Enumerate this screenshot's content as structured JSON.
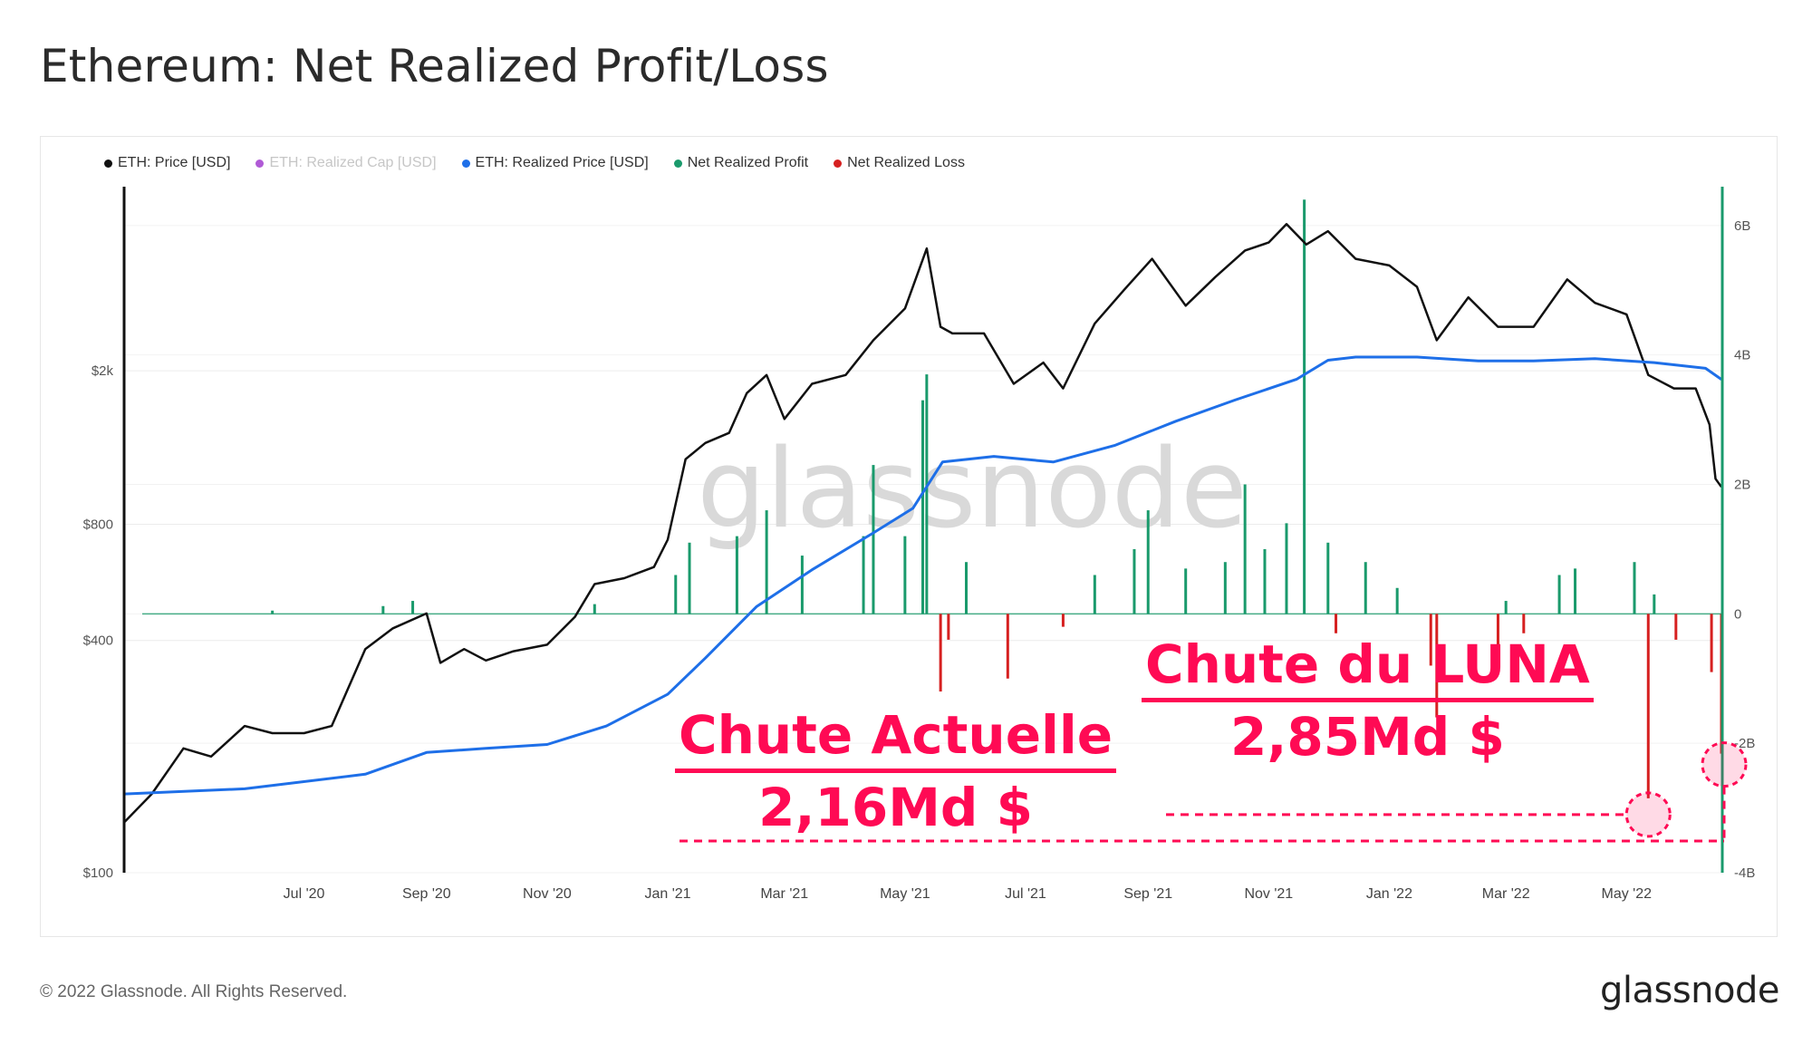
{
  "title": "Ethereum: Net Realized Profit/Loss",
  "footer": "© 2022 Glassnode. All Rights Reserved.",
  "brand": "glassnode",
  "watermark": "glassnode",
  "legend": [
    {
      "label": "ETH: Price [USD]",
      "color": "#111111",
      "enabled": true
    },
    {
      "label": "ETH: Realized Cap [USD]",
      "color": "#b05ad6",
      "enabled": false
    },
    {
      "label": "ETH: Realized Price [USD]",
      "color": "#1e6fe8",
      "enabled": true
    },
    {
      "label": "Net Realized Profit",
      "color": "#1a9a6c",
      "enabled": true
    },
    {
      "label": "Net Realized Loss",
      "color": "#d62020",
      "enabled": true
    }
  ],
  "annotations": {
    "current": {
      "head": "Chute Actuelle",
      "value": "2,16Md $"
    },
    "luna": {
      "head": "Chute du LUNA",
      "value": "2,85Md $"
    }
  },
  "colors": {
    "accent": "#ff0a54",
    "price": "#111111",
    "realized": "#1e6fe8",
    "profit": "#1a9a6c",
    "loss": "#d62020"
  },
  "chart_data": {
    "type": "line",
    "x_ticks": [
      "Jul '20",
      "Sep '20",
      "Nov '20",
      "Jan '21",
      "Mar '21",
      "May '21",
      "Jul '21",
      "Sep '21",
      "Nov '21",
      "Jan '22",
      "Mar '22",
      "May '22"
    ],
    "y_left_ticks": [
      "$100",
      "$400",
      "$800",
      "$2k"
    ],
    "y_left_scale": "log",
    "y_left_range": [
      100,
      6000
    ],
    "y_right_ticks": [
      "6B",
      "4B",
      "2B",
      "0",
      "-2B",
      "-4B"
    ],
    "y_right_range": [
      -4,
      6.6
    ],
    "grid": true,
    "legend_position": "top-left",
    "x_range": [
      "2020-04-01",
      "2022-06-18"
    ],
    "series": [
      {
        "name": "ETH: Price [USD]",
        "axis": "left",
        "points": [
          [
            "2020-04-01",
            135
          ],
          [
            "2020-04-15",
            160
          ],
          [
            "2020-05-01",
            210
          ],
          [
            "2020-05-15",
            200
          ],
          [
            "2020-06-01",
            240
          ],
          [
            "2020-06-15",
            230
          ],
          [
            "2020-07-01",
            230
          ],
          [
            "2020-07-15",
            240
          ],
          [
            "2020-08-01",
            380
          ],
          [
            "2020-08-15",
            430
          ],
          [
            "2020-09-01",
            470
          ],
          [
            "2020-09-08",
            350
          ],
          [
            "2020-09-20",
            380
          ],
          [
            "2020-10-01",
            355
          ],
          [
            "2020-10-15",
            375
          ],
          [
            "2020-11-01",
            390
          ],
          [
            "2020-11-15",
            460
          ],
          [
            "2020-11-25",
            560
          ],
          [
            "2020-12-10",
            580
          ],
          [
            "2020-12-25",
            620
          ],
          [
            "2021-01-01",
            730
          ],
          [
            "2021-01-10",
            1180
          ],
          [
            "2021-01-20",
            1300
          ],
          [
            "2021-02-01",
            1380
          ],
          [
            "2021-02-10",
            1750
          ],
          [
            "2021-02-20",
            1950
          ],
          [
            "2021-03-01",
            1500
          ],
          [
            "2021-03-15",
            1850
          ],
          [
            "2021-04-01",
            1950
          ],
          [
            "2021-04-15",
            2400
          ],
          [
            "2021-05-01",
            2900
          ],
          [
            "2021-05-12",
            4150
          ],
          [
            "2021-05-19",
            2600
          ],
          [
            "2021-05-25",
            2500
          ],
          [
            "2021-06-10",
            2500
          ],
          [
            "2021-06-25",
            1850
          ],
          [
            "2021-07-10",
            2100
          ],
          [
            "2021-07-20",
            1800
          ],
          [
            "2021-08-05",
            2650
          ],
          [
            "2021-08-20",
            3250
          ],
          [
            "2021-09-03",
            3900
          ],
          [
            "2021-09-20",
            2950
          ],
          [
            "2021-10-05",
            3500
          ],
          [
            "2021-10-20",
            4100
          ],
          [
            "2021-11-01",
            4300
          ],
          [
            "2021-11-10",
            4800
          ],
          [
            "2021-11-20",
            4250
          ],
          [
            "2021-12-01",
            4600
          ],
          [
            "2021-12-15",
            3900
          ],
          [
            "2022-01-01",
            3750
          ],
          [
            "2022-01-15",
            3300
          ],
          [
            "2022-01-25",
            2400
          ],
          [
            "2022-02-10",
            3100
          ],
          [
            "2022-02-25",
            2600
          ],
          [
            "2022-03-15",
            2600
          ],
          [
            "2022-04-01",
            3450
          ],
          [
            "2022-04-15",
            3000
          ],
          [
            "2022-05-01",
            2800
          ],
          [
            "2022-05-12",
            1950
          ],
          [
            "2022-05-25",
            1800
          ],
          [
            "2022-06-05",
            1800
          ],
          [
            "2022-06-12",
            1450
          ],
          [
            "2022-06-15",
            1050
          ],
          [
            "2022-06-18",
            1000
          ]
        ]
      },
      {
        "name": "ETH: Realized Price [USD]",
        "axis": "left",
        "points": [
          [
            "2020-04-01",
            160
          ],
          [
            "2020-06-01",
            165
          ],
          [
            "2020-08-01",
            180
          ],
          [
            "2020-09-01",
            205
          ],
          [
            "2020-10-01",
            210
          ],
          [
            "2020-11-01",
            215
          ],
          [
            "2020-12-01",
            240
          ],
          [
            "2021-01-01",
            290
          ],
          [
            "2021-01-20",
            360
          ],
          [
            "2021-02-15",
            490
          ],
          [
            "2021-03-15",
            610
          ],
          [
            "2021-04-15",
            760
          ],
          [
            "2021-05-05",
            880
          ],
          [
            "2021-05-20",
            1160
          ],
          [
            "2021-06-15",
            1200
          ],
          [
            "2021-07-15",
            1160
          ],
          [
            "2021-08-15",
            1280
          ],
          [
            "2021-09-15",
            1480
          ],
          [
            "2021-10-15",
            1680
          ],
          [
            "2021-11-15",
            1900
          ],
          [
            "2021-12-01",
            2130
          ],
          [
            "2021-12-15",
            2170
          ],
          [
            "2022-01-15",
            2170
          ],
          [
            "2022-02-15",
            2120
          ],
          [
            "2022-03-15",
            2120
          ],
          [
            "2022-04-15",
            2150
          ],
          [
            "2022-05-15",
            2100
          ],
          [
            "2022-06-10",
            2030
          ],
          [
            "2022-06-18",
            1900
          ]
        ]
      },
      {
        "name": "Net Realized Profit",
        "axis": "right",
        "bars": [
          [
            "2020-06-15",
            0.05
          ],
          [
            "2020-08-10",
            0.12
          ],
          [
            "2020-08-25",
            0.2
          ],
          [
            "2020-11-25",
            0.15
          ],
          [
            "2021-01-05",
            0.6
          ],
          [
            "2021-01-12",
            1.1
          ],
          [
            "2021-02-05",
            1.2
          ],
          [
            "2021-02-20",
            1.6
          ],
          [
            "2021-03-10",
            0.9
          ],
          [
            "2021-04-10",
            1.2
          ],
          [
            "2021-04-15",
            2.3
          ],
          [
            "2021-05-01",
            1.2
          ],
          [
            "2021-05-10",
            3.3
          ],
          [
            "2021-05-12",
            3.7
          ],
          [
            "2021-06-01",
            0.8
          ],
          [
            "2021-08-05",
            0.6
          ],
          [
            "2021-08-25",
            1.0
          ],
          [
            "2021-09-01",
            1.6
          ],
          [
            "2021-09-20",
            0.7
          ],
          [
            "2021-10-10",
            0.8
          ],
          [
            "2021-10-20",
            2.0
          ],
          [
            "2021-10-30",
            1.0
          ],
          [
            "2021-11-10",
            1.4
          ],
          [
            "2021-11-19",
            6.4
          ],
          [
            "2021-12-01",
            1.1
          ],
          [
            "2021-12-20",
            0.8
          ],
          [
            "2022-01-05",
            0.4
          ],
          [
            "2022-03-01",
            0.2
          ],
          [
            "2022-03-28",
            0.6
          ],
          [
            "2022-04-05",
            0.7
          ],
          [
            "2022-05-05",
            0.8
          ],
          [
            "2022-05-15",
            0.3
          ]
        ]
      },
      {
        "name": "Net Realized Loss",
        "axis": "right",
        "bars": [
          [
            "2021-05-19",
            -1.2
          ],
          [
            "2021-05-23",
            -0.4
          ],
          [
            "2021-06-22",
            -1.0
          ],
          [
            "2021-07-20",
            -0.2
          ],
          [
            "2021-12-05",
            -0.3
          ],
          [
            "2022-01-22",
            -0.8
          ],
          [
            "2022-01-25",
            -1.6
          ],
          [
            "2022-02-25",
            -0.5
          ],
          [
            "2022-03-10",
            -0.3
          ],
          [
            "2022-05-12",
            -2.85
          ],
          [
            "2022-05-26",
            -0.4
          ],
          [
            "2022-06-13",
            -0.9
          ],
          [
            "2022-06-18",
            -2.16
          ]
        ]
      }
    ]
  }
}
